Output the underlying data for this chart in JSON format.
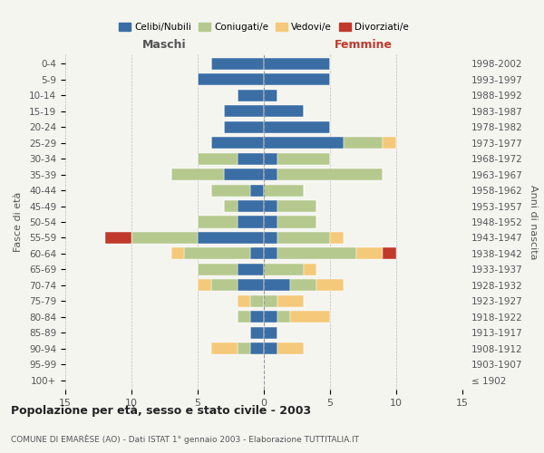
{
  "age_groups": [
    "100+",
    "95-99",
    "90-94",
    "85-89",
    "80-84",
    "75-79",
    "70-74",
    "65-69",
    "60-64",
    "55-59",
    "50-54",
    "45-49",
    "40-44",
    "35-39",
    "30-34",
    "25-29",
    "20-24",
    "15-19",
    "10-14",
    "5-9",
    "0-4"
  ],
  "birth_years": [
    "≤ 1902",
    "1903-1907",
    "1908-1912",
    "1913-1917",
    "1918-1922",
    "1923-1927",
    "1928-1932",
    "1933-1937",
    "1938-1942",
    "1943-1947",
    "1948-1952",
    "1953-1957",
    "1958-1962",
    "1963-1967",
    "1968-1972",
    "1973-1977",
    "1978-1982",
    "1983-1987",
    "1988-1992",
    "1993-1997",
    "1998-2002"
  ],
  "maschi": {
    "celibi": [
      0,
      0,
      1,
      1,
      1,
      0,
      2,
      2,
      1,
      5,
      2,
      2,
      1,
      3,
      2,
      4,
      3,
      3,
      2,
      5,
      4
    ],
    "coniugati": [
      0,
      0,
      1,
      0,
      1,
      1,
      2,
      3,
      5,
      5,
      3,
      1,
      3,
      4,
      3,
      0,
      0,
      0,
      0,
      0,
      0
    ],
    "vedovi": [
      0,
      0,
      2,
      0,
      0,
      1,
      1,
      0,
      1,
      0,
      0,
      0,
      0,
      0,
      0,
      0,
      0,
      0,
      0,
      0,
      0
    ],
    "divorziati": [
      0,
      0,
      0,
      0,
      0,
      0,
      0,
      0,
      0,
      2,
      0,
      0,
      0,
      0,
      0,
      0,
      0,
      0,
      0,
      0,
      0
    ]
  },
  "femmine": {
    "nubili": [
      0,
      0,
      1,
      1,
      1,
      0,
      2,
      0,
      1,
      1,
      1,
      1,
      0,
      1,
      1,
      6,
      5,
      3,
      1,
      5,
      5
    ],
    "coniugate": [
      0,
      0,
      0,
      0,
      1,
      1,
      2,
      3,
      6,
      4,
      3,
      3,
      3,
      8,
      4,
      3,
      0,
      0,
      0,
      0,
      0
    ],
    "vedove": [
      0,
      0,
      2,
      0,
      3,
      2,
      2,
      1,
      2,
      1,
      0,
      0,
      0,
      0,
      0,
      1,
      0,
      0,
      0,
      0,
      0
    ],
    "divorziate": [
      0,
      0,
      0,
      0,
      0,
      0,
      0,
      0,
      1,
      0,
      0,
      0,
      0,
      0,
      0,
      0,
      0,
      0,
      0,
      0,
      0
    ]
  },
  "colors": {
    "celibi_nubili": "#3a6ea5",
    "coniugati": "#b5c98e",
    "vedovi": "#f5c97a",
    "divorziati": "#c0392b"
  },
  "xlim": 15,
  "title": "Popolazione per età, sesso e stato civile - 2003",
  "subtitle": "COMUNE DI EMARÈSE (AO) - Dati ISTAT 1° gennaio 2003 - Elaborazione TUTTITALIA.IT",
  "ylabel_left": "Fasce di età",
  "ylabel_right": "Anni di nascita",
  "xlabel_maschi": "Maschi",
  "xlabel_femmine": "Femmine",
  "legend_labels": [
    "Celibi/Nubili",
    "Coniugati/e",
    "Vedovi/e",
    "Divorziati/e"
  ],
  "background_color": "#f5f5f0"
}
